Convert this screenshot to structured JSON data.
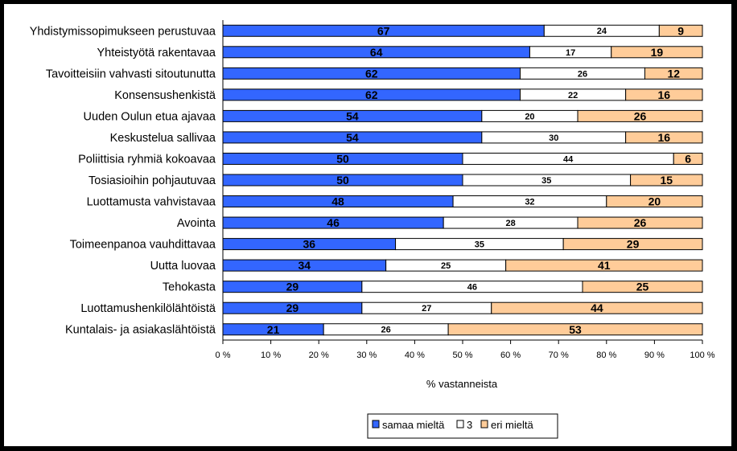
{
  "chart_data": {
    "type": "bar",
    "orientation": "horizontal",
    "stacked": "percent",
    "categories": [
      "Yhdistymissopimukseen perustuvaa",
      "Yhteistyötä rakentavaa",
      "Tavoitteisiin vahvasti sitoutunutta",
      "Konsensushenkistä",
      "Uuden Oulun etua ajavaa",
      "Keskustelua sallivaa",
      "Poliittisia ryhmiä kokoavaa",
      "Tosiasioihin pohjautuvaa",
      "Luottamusta vahvistavaa",
      "Avointa",
      "Toimeenpanoa vauhdittavaa",
      "Uutta luovaa",
      "Tehokasta",
      "Luottamushenkilölähtöistä",
      "Kuntalais- ja asiakaslähtöistä"
    ],
    "series": [
      {
        "name": "samaa mieltä",
        "color": "#3366ff",
        "values": [
          67,
          64,
          62,
          62,
          54,
          54,
          50,
          50,
          48,
          46,
          36,
          34,
          29,
          29,
          21
        ]
      },
      {
        "name": "3",
        "color": "#ffffff",
        "values": [
          24,
          17,
          26,
          22,
          20,
          30,
          44,
          35,
          32,
          28,
          35,
          25,
          46,
          27,
          26
        ]
      },
      {
        "name": "eri mieltä",
        "color": "#ffcc99",
        "values": [
          9,
          19,
          12,
          16,
          26,
          16,
          6,
          15,
          20,
          26,
          29,
          41,
          25,
          44,
          53
        ]
      }
    ],
    "xlabel": "% vastanneista",
    "xlim": [
      0,
      100
    ],
    "xticks": [
      "0 %",
      "10 %",
      "20 %",
      "30 %",
      "40 %",
      "50 %",
      "60 %",
      "70 %",
      "80 %",
      "90 %",
      "100 %"
    ],
    "legend_position": "bottom",
    "grid": false
  }
}
